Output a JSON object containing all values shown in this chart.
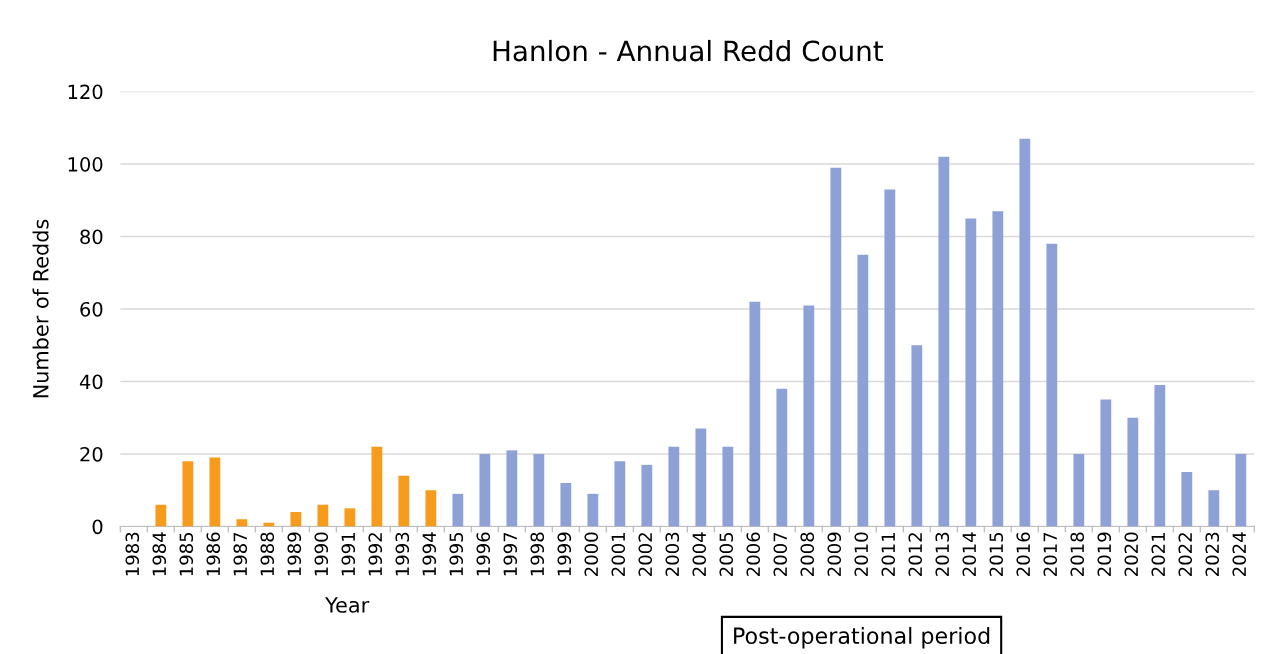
{
  "chart_data": {
    "type": "bar",
    "title": "Hanlon - Annual Redd Count",
    "xlabel": "Year",
    "ylabel": "Number of Redds",
    "categories": [
      "1983",
      "1984",
      "1985",
      "1986",
      "1987",
      "1988",
      "1989",
      "1990",
      "1991",
      "1992",
      "1993",
      "1994",
      "1995",
      "1996",
      "1997",
      "1998",
      "1999",
      "2000",
      "2001",
      "2002",
      "2003",
      "2004",
      "2005",
      "2006",
      "2007",
      "2008",
      "2009",
      "2010",
      "2011",
      "2012",
      "2013",
      "2014",
      "2015",
      "2016",
      "2017",
      "2018",
      "2019",
      "2020",
      "2021",
      "2022",
      "2023",
      "2024"
    ],
    "values": [
      0,
      6,
      18,
      19,
      2,
      1,
      4,
      6,
      5,
      22,
      14,
      10,
      9,
      20,
      21,
      20,
      12,
      9,
      18,
      17,
      22,
      27,
      22,
      62,
      38,
      61,
      99,
      75,
      93,
      50,
      102,
      85,
      87,
      107,
      78,
      20,
      35,
      30,
      39,
      15,
      10,
      20
    ],
    "colors": [
      "#f79b1c",
      "#f79b1c",
      "#f79b1c",
      "#f79b1c",
      "#f79b1c",
      "#f79b1c",
      "#f79b1c",
      "#f79b1c",
      "#f79b1c",
      "#f79b1c",
      "#f79b1c",
      "#f79b1c",
      "#8da1d6",
      "#8da1d6",
      "#8da1d6",
      "#8da1d6",
      "#8da1d6",
      "#8da1d6",
      "#8da1d6",
      "#8da1d6",
      "#8da1d6",
      "#8da1d6",
      "#8da1d6",
      "#8da1d6",
      "#8da1d6",
      "#8da1d6",
      "#8da1d6",
      "#8da1d6",
      "#8da1d6",
      "#8da1d6",
      "#8da1d6",
      "#8da1d6",
      "#8da1d6",
      "#8da1d6",
      "#8da1d6",
      "#8da1d6",
      "#8da1d6",
      "#8da1d6",
      "#8da1d6",
      "#8da1d6",
      "#8da1d6",
      "#8da1d6"
    ],
    "ylim": [
      0,
      120
    ],
    "yticks": [
      0,
      20,
      40,
      60,
      80,
      100,
      120
    ],
    "grid": "y",
    "annotations": [
      "Post-operational period"
    ]
  }
}
